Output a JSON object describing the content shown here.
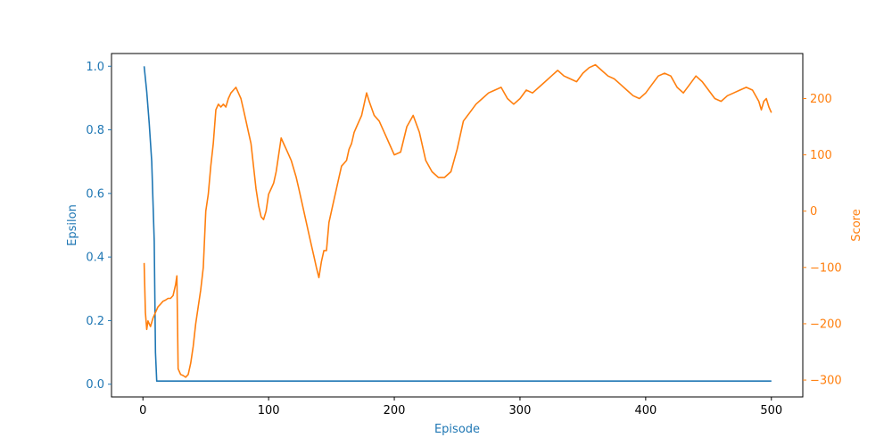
{
  "chart_data": {
    "type": "line",
    "title": "",
    "xlabel": "Episode",
    "xlim": [
      -25,
      525
    ],
    "xticks": [
      0,
      100,
      200,
      300,
      400,
      500
    ],
    "grid": false,
    "legend": "none",
    "axes": {
      "left": {
        "label": "Epsilon",
        "color": "#1f77b4",
        "ylim": [
          -0.04,
          1.04
        ],
        "ticks": [
          "0.0",
          "0.2",
          "0.4",
          "0.6",
          "0.8",
          "1.0"
        ]
      },
      "right": {
        "label": "Score",
        "color": "#ff7f0e",
        "ylim": [
          -330,
          280
        ],
        "ticks": [
          "−300",
          "−200",
          "−100",
          "0",
          "100",
          "200"
        ]
      }
    },
    "series": [
      {
        "axis": "left",
        "color": "#1f77b4",
        "x": [
          1,
          3,
          5,
          7,
          9,
          10,
          11,
          500
        ],
        "y": [
          1.0,
          0.92,
          0.82,
          0.7,
          0.45,
          0.1,
          0.01,
          0.01
        ]
      },
      {
        "axis": "right",
        "color": "#ff7f0e",
        "x": [
          1,
          2,
          3,
          4,
          5,
          6,
          8,
          10,
          12,
          14,
          16,
          18,
          20,
          22,
          24,
          26,
          27,
          28,
          30,
          32,
          34,
          36,
          38,
          40,
          42,
          44,
          46,
          48,
          50,
          52,
          54,
          56,
          58,
          60,
          62,
          64,
          66,
          68,
          70,
          72,
          74,
          76,
          78,
          80,
          82,
          84,
          86,
          88,
          90,
          92,
          94,
          96,
          98,
          100,
          102,
          104,
          106,
          108,
          110,
          112,
          114,
          116,
          118,
          120,
          122,
          124,
          126,
          128,
          130,
          132,
          134,
          136,
          138,
          140,
          142,
          144,
          146,
          148,
          150,
          152,
          154,
          156,
          158,
          160,
          162,
          164,
          166,
          168,
          170,
          172,
          174,
          176,
          178,
          180,
          184,
          188,
          192,
          196,
          200,
          205,
          210,
          215,
          220,
          225,
          230,
          235,
          240,
          245,
          250,
          255,
          260,
          265,
          270,
          275,
          280,
          285,
          290,
          295,
          300,
          305,
          310,
          315,
          320,
          325,
          330,
          335,
          340,
          345,
          350,
          355,
          360,
          365,
          370,
          375,
          380,
          385,
          390,
          395,
          400,
          405,
          410,
          415,
          420,
          425,
          430,
          435,
          440,
          445,
          450,
          455,
          460,
          465,
          470,
          475,
          480,
          485,
          490,
          492,
          494,
          496,
          498,
          500
        ],
        "y": [
          -92,
          -180,
          -210,
          -195,
          -200,
          -205,
          -190,
          -180,
          -170,
          -165,
          -160,
          -158,
          -155,
          -155,
          -150,
          -130,
          -115,
          -280,
          -290,
          -292,
          -295,
          -290,
          -270,
          -240,
          -200,
          -170,
          -140,
          -100,
          0,
          30,
          80,
          120,
          180,
          190,
          185,
          190,
          185,
          200,
          210,
          215,
          220,
          210,
          200,
          180,
          160,
          140,
          120,
          80,
          40,
          10,
          -10,
          -15,
          0,
          30,
          40,
          50,
          70,
          100,
          130,
          120,
          110,
          100,
          90,
          75,
          60,
          40,
          20,
          0,
          -20,
          -40,
          -60,
          -80,
          -100,
          -118,
          -90,
          -70,
          -70,
          -20,
          0,
          20,
          40,
          60,
          80,
          85,
          90,
          110,
          120,
          140,
          150,
          160,
          170,
          190,
          210,
          195,
          170,
          160,
          140,
          120,
          100,
          105,
          150,
          170,
          140,
          90,
          70,
          60,
          60,
          70,
          110,
          160,
          175,
          190,
          200,
          210,
          215,
          220,
          200,
          190,
          200,
          215,
          210,
          220,
          230,
          240,
          250,
          240,
          235,
          230,
          245,
          255,
          260,
          250,
          240,
          235,
          225,
          215,
          205,
          200,
          210,
          225,
          240,
          245,
          240,
          220,
          210,
          225,
          240,
          230,
          215,
          200,
          195,
          205,
          210,
          215,
          220,
          215,
          195,
          180,
          195,
          200,
          185,
          175
        ]
      }
    ]
  }
}
